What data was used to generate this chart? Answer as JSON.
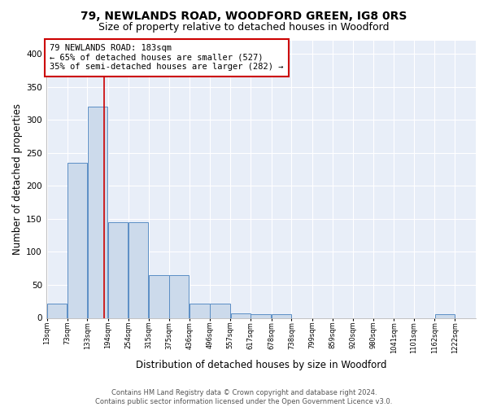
{
  "title1": "79, NEWLANDS ROAD, WOODFORD GREEN, IG8 0RS",
  "title2": "Size of property relative to detached houses in Woodford",
  "xlabel": "Distribution of detached houses by size in Woodford",
  "ylabel": "Number of detached properties",
  "bin_labels": [
    "13sqm",
    "73sqm",
    "133sqm",
    "194sqm",
    "254sqm",
    "315sqm",
    "375sqm",
    "436sqm",
    "496sqm",
    "557sqm",
    "617sqm",
    "678sqm",
    "738sqm",
    "799sqm",
    "859sqm",
    "920sqm",
    "980sqm",
    "1041sqm",
    "1101sqm",
    "1162sqm",
    "1222sqm"
  ],
  "bin_edges": [
    13,
    73,
    133,
    194,
    254,
    315,
    375,
    436,
    496,
    557,
    617,
    678,
    738,
    799,
    859,
    920,
    980,
    1041,
    1101,
    1162,
    1222
  ],
  "bar_heights": [
    22,
    235,
    320,
    145,
    145,
    65,
    65,
    22,
    22,
    7,
    5,
    5,
    0,
    0,
    0,
    0,
    0,
    0,
    0,
    5
  ],
  "bar_color": "#ccdaeb",
  "bar_edge_color": "#5b8ec5",
  "property_size": 183,
  "vline_color": "#cc0000",
  "annotation_text": "79 NEWLANDS ROAD: 183sqm\n← 65% of detached houses are smaller (527)\n35% of semi-detached houses are larger (282) →",
  "annotation_box_color": "#ffffff",
  "annotation_box_edge_color": "#cc0000",
  "ylim": [
    0,
    420
  ],
  "yticks": [
    0,
    50,
    100,
    150,
    200,
    250,
    300,
    350,
    400
  ],
  "background_color": "#e8eef8",
  "footer_text": "Contains HM Land Registry data © Crown copyright and database right 2024.\nContains public sector information licensed under the Open Government Licence v3.0.",
  "title1_fontsize": 10,
  "title2_fontsize": 9,
  "xlabel_fontsize": 8.5,
  "ylabel_fontsize": 8.5,
  "annotation_fontsize": 7.5,
  "grid_color": "#ffffff"
}
